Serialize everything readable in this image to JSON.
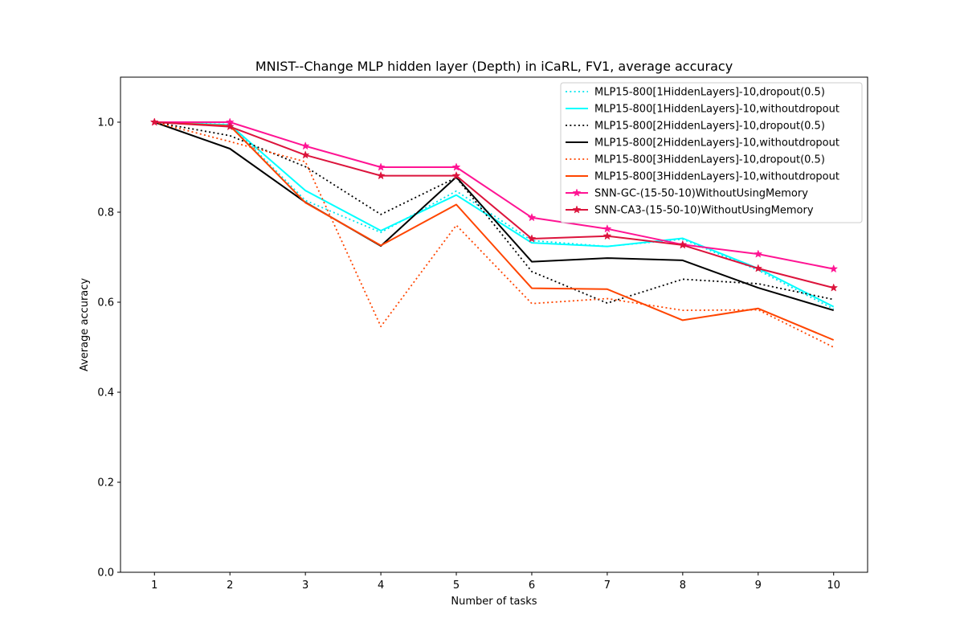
{
  "chart_data": {
    "type": "line",
    "title": "MNIST--Change MLP hidden layer (Depth) in iCaRL, FV1, average accuracy",
    "xlabel": "Number of tasks",
    "ylabel": "Average accuracy",
    "xlim": [
      0.55,
      10.45
    ],
    "ylim": [
      0.0,
      1.1
    ],
    "xticks": [
      "1",
      "2",
      "3",
      "4",
      "5",
      "6",
      "7",
      "8",
      "9",
      "10"
    ],
    "yticks": [
      "0.0",
      "0.2",
      "0.4",
      "0.6",
      "0.8",
      "1.0"
    ],
    "grid": false,
    "legend_position": "top-right",
    "x": [
      1,
      2,
      3,
      4,
      5,
      6,
      7,
      8,
      9,
      10
    ],
    "series": [
      {
        "name": "MLP15-800[1HiddenLayers]-10,dropout(0.5)",
        "color": "#00e5ee",
        "style": "dotted",
        "marker": "none",
        "values": [
          1.0,
          0.995,
          0.826,
          0.755,
          0.847,
          0.737,
          0.724,
          0.74,
          0.671,
          0.585
        ]
      },
      {
        "name": "MLP15-800[1HiddenLayers]-10,withoutdropout",
        "color": "#00ffff",
        "style": "solid",
        "marker": "none",
        "values": [
          1.0,
          0.994,
          0.848,
          0.759,
          0.838,
          0.732,
          0.724,
          0.742,
          0.675,
          0.59
        ]
      },
      {
        "name": "MLP15-800[2HiddenLayers]-10,dropout(0.5)",
        "color": "#000000",
        "style": "dotted",
        "marker": "none",
        "values": [
          1.0,
          0.97,
          0.901,
          0.795,
          0.877,
          0.668,
          0.598,
          0.651,
          0.641,
          0.606
        ]
      },
      {
        "name": "MLP15-800[2HiddenLayers]-10,withoutdropout",
        "color": "#000000",
        "style": "solid",
        "marker": "none",
        "values": [
          1.0,
          0.941,
          0.822,
          0.725,
          0.878,
          0.69,
          0.698,
          0.693,
          0.632,
          0.582
        ]
      },
      {
        "name": "MLP15-800[3HiddenLayers]-10,dropout(0.5)",
        "color": "#ff4500",
        "style": "dotted",
        "marker": "none",
        "values": [
          1.0,
          0.957,
          0.912,
          0.546,
          0.771,
          0.597,
          0.608,
          0.582,
          0.583,
          0.5
        ]
      },
      {
        "name": "MLP15-800[3HiddenLayers]-10,withoutdropout",
        "color": "#ff4500",
        "style": "solid",
        "marker": "none",
        "values": [
          1.0,
          0.992,
          0.821,
          0.726,
          0.817,
          0.631,
          0.629,
          0.56,
          0.586,
          0.516
        ]
      },
      {
        "name": "SNN-GC-(15-50-10)WithoutUsingMemory",
        "color": "#ff1493",
        "style": "solid",
        "marker": "star",
        "values": [
          1.0,
          1.0,
          0.947,
          0.9,
          0.9,
          0.788,
          0.763,
          0.728,
          0.707,
          0.674
        ]
      },
      {
        "name": "SNN-CA3-(15-50-10)WithoutUsingMemory",
        "color": "#dc143c",
        "style": "solid",
        "marker": "star",
        "values": [
          1.0,
          0.99,
          0.927,
          0.881,
          0.881,
          0.741,
          0.747,
          0.727,
          0.675,
          0.632
        ]
      }
    ]
  }
}
